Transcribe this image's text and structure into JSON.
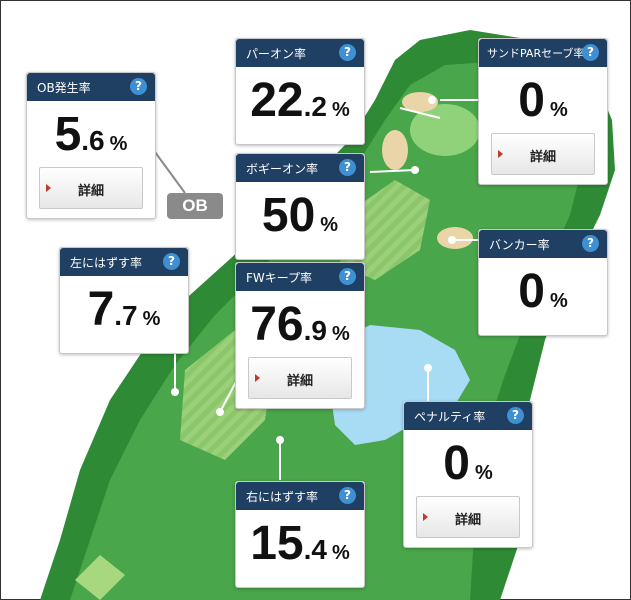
{
  "ob_badge": "OB",
  "help_glyph": "?",
  "detail_label": "詳細",
  "colors": {
    "header": "#1f3f63",
    "help_icon": "#3f8fd3",
    "fairway": "#3e9a41",
    "light_green": "#8dc86a",
    "water": "#a8dbf4",
    "bunker": "#e9d5a8",
    "detail_arrow": "#c0392b"
  },
  "stats": {
    "ob_rate": {
      "title": "OB発生率",
      "int": "5",
      "dec": ".6",
      "pct": "%"
    },
    "par_on_rate": {
      "title": "パーオン率",
      "int": "22",
      "dec": ".2",
      "pct": "%"
    },
    "sand_save_rate": {
      "title": "サンドPARセーブ率",
      "int": "0",
      "dec": "",
      "pct": "%"
    },
    "bogey_on_rate": {
      "title": "ボギーオン率",
      "int": "50",
      "dec": "",
      "pct": "%"
    },
    "bunker_rate": {
      "title": "バンカー率",
      "int": "0",
      "dec": "",
      "pct": "%"
    },
    "miss_left_rate": {
      "title": "左にはずす率",
      "int": "7",
      "dec": ".7",
      "pct": "%"
    },
    "fw_keep_rate": {
      "title": "FWキープ率",
      "int": "76",
      "dec": ".9",
      "pct": "%"
    },
    "penalty_rate": {
      "title": "ペナルティ率",
      "int": "0",
      "dec": "",
      "pct": "%"
    },
    "miss_right_rate": {
      "title": "右にはずす率",
      "int": "15",
      "dec": ".4",
      "pct": "%"
    }
  }
}
